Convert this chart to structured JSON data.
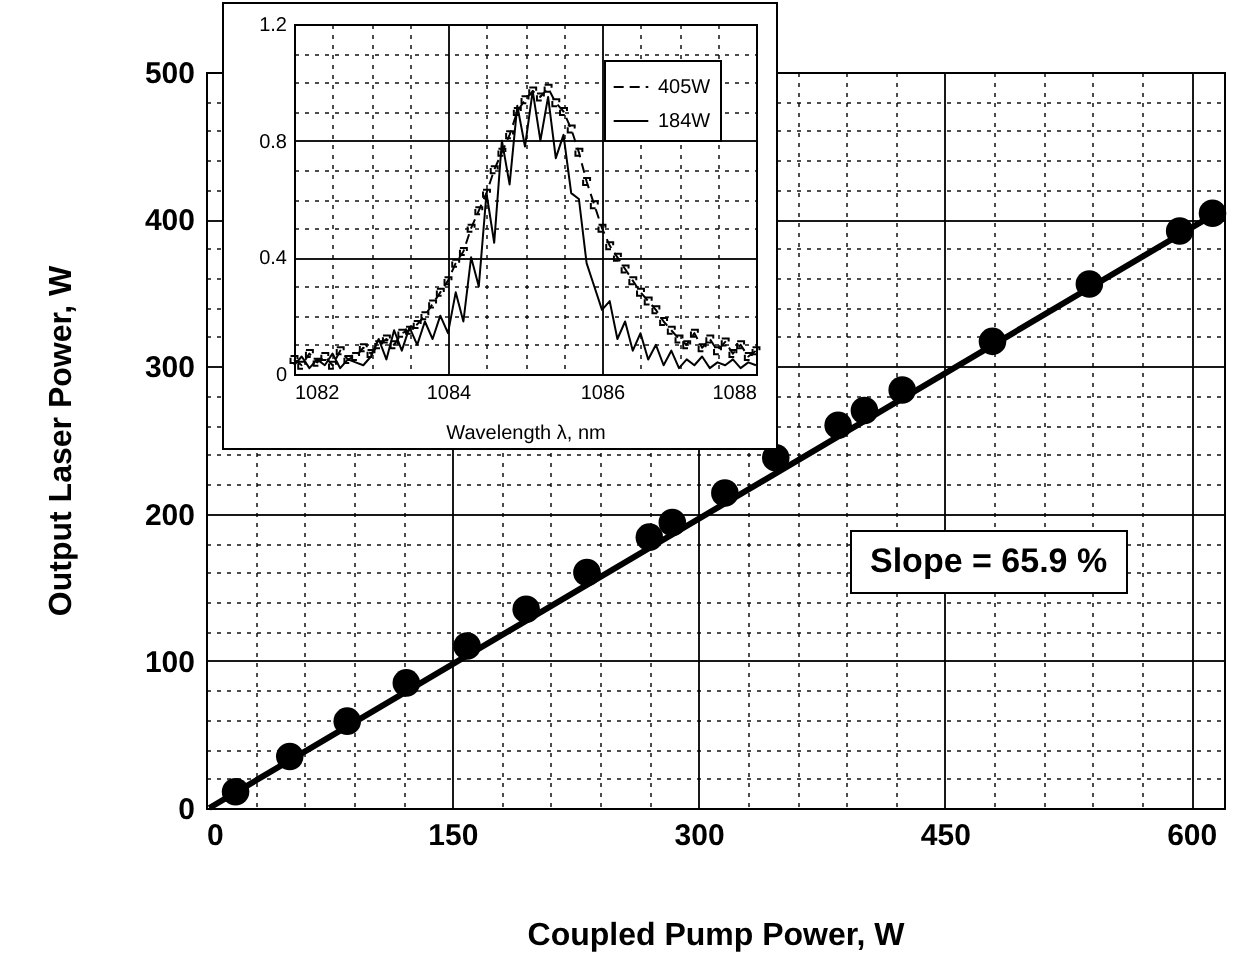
{
  "chart_data": [
    {
      "type": "scatter",
      "xlabel": "Coupled Pump Power, W",
      "ylabel": "Output Laser Power, W",
      "xlim": [
        0,
        620
      ],
      "ylim": [
        0,
        500
      ],
      "xticks": [
        0,
        {
          "value": 30,
          "label": null
        },
        {
          "value": 60,
          "label": null
        },
        {
          "value": 90,
          "label": null
        },
        {
          "value": 120,
          "label": null
        },
        150,
        {
          "value": 180,
          "label": null
        },
        {
          "value": 210,
          "label": null
        },
        {
          "value": 240,
          "label": null
        },
        {
          "value": 270,
          "label": null
        },
        300,
        {
          "value": 330,
          "label": null
        },
        {
          "value": 360,
          "label": null
        },
        {
          "value": 390,
          "label": null
        },
        {
          "value": 420,
          "label": null
        },
        450,
        {
          "value": 480,
          "label": null
        },
        {
          "value": 510,
          "label": null
        },
        {
          "value": 540,
          "label": null
        },
        {
          "value": 570,
          "label": null
        },
        600
      ],
      "yticks": [
        0,
        {
          "value": 20,
          "label": null
        },
        {
          "value": 40,
          "label": null
        },
        {
          "value": 60,
          "label": null
        },
        {
          "value": 80,
          "label": null
        },
        100,
        {
          "value": 120,
          "label": null
        },
        {
          "value": 140,
          "label": null
        },
        {
          "value": 160,
          "label": null
        },
        {
          "value": 180,
          "label": null
        },
        200,
        {
          "value": 220,
          "label": null
        },
        {
          "value": 240,
          "label": null
        },
        {
          "value": 260,
          "label": null
        },
        {
          "value": 280,
          "label": null
        },
        300,
        {
          "value": 320,
          "label": null
        },
        {
          "value": 340,
          "label": null
        },
        {
          "value": 360,
          "label": null
        },
        {
          "value": 380,
          "label": null
        },
        400,
        {
          "value": 420,
          "label": null
        },
        {
          "value": 440,
          "label": null
        },
        {
          "value": 460,
          "label": null
        },
        {
          "value": 480,
          "label": null
        },
        500
      ],
      "grid": true,
      "annotations": [
        "Slope = 65.9 %"
      ],
      "series": [
        {
          "type": "line",
          "color": "#000000",
          "marker": "none",
          "line_style": "solid",
          "x": [
            2,
            615
          ],
          "values": [
            0,
            404
          ]
        },
        {
          "color": "#000000",
          "marker": "circle",
          "x": [
            18,
            51,
            86,
            122,
            159,
            195,
            232,
            270,
            284,
            316,
            347,
            385,
            401,
            424,
            479,
            538,
            593,
            613
          ],
          "values": [
            11,
            35,
            59,
            85,
            110,
            135,
            160,
            184,
            194,
            214,
            238,
            260,
            270,
            284,
            317,
            356,
            392,
            404
          ]
        }
      ]
    },
    {
      "type": "line",
      "xlabel": "Wavelength λ, nm",
      "xlim": [
        1082,
        1088
      ],
      "ylim": [
        0,
        1.2
      ],
      "xticks": [
        1082,
        {
          "value": 1082.5,
          "label": null
        },
        {
          "value": 1083,
          "label": null
        },
        {
          "value": 1083.5,
          "label": null
        },
        1084,
        {
          "value": 1084.5,
          "label": null
        },
        {
          "value": 1085,
          "label": null
        },
        {
          "value": 1085.5,
          "label": null
        },
        1086,
        {
          "value": 1086.5,
          "label": null
        },
        {
          "value": 1087,
          "label": null
        },
        {
          "value": 1087.5,
          "label": null
        },
        1088
      ],
      "yticks": [
        0,
        {
          "value": 0.1,
          "label": null
        },
        {
          "value": 0.2,
          "label": null
        },
        {
          "value": 0.3,
          "label": null
        },
        0.4,
        {
          "value": 0.5,
          "label": null
        },
        {
          "value": 0.6,
          "label": null
        },
        {
          "value": 0.7,
          "label": null
        },
        0.8,
        {
          "value": 0.9,
          "label": null
        },
        {
          "value": 1.0,
          "label": null
        },
        {
          "value": 1.1,
          "label": null
        },
        1.2
      ],
      "grid": true,
      "legend": "top right",
      "x": [
        1082.0,
        1082.1,
        1082.2,
        1082.3,
        1082.4,
        1082.5,
        1082.6,
        1082.7,
        1082.8,
        1082.9,
        1083.0,
        1083.1,
        1083.2,
        1083.3,
        1083.4,
        1083.5,
        1083.6,
        1083.7,
        1083.8,
        1083.9,
        1084.0,
        1084.1,
        1084.2,
        1084.3,
        1084.4,
        1084.5,
        1084.6,
        1084.7,
        1084.8,
        1084.9,
        1085.0,
        1085.1,
        1085.2,
        1085.3,
        1085.4,
        1085.5,
        1085.6,
        1085.7,
        1085.8,
        1085.9,
        1086.0,
        1086.1,
        1086.2,
        1086.3,
        1086.4,
        1086.5,
        1086.6,
        1086.7,
        1086.8,
        1086.9,
        1087.0,
        1087.1,
        1087.2,
        1087.3,
        1087.4,
        1087.5,
        1087.6,
        1087.7,
        1087.8,
        1087.9,
        1088.0
      ],
      "series": [
        {
          "name": "405W",
          "color": "#000000",
          "marker": "square",
          "line_style": "dashed",
          "values": [
            0.05,
            0.03,
            0.07,
            0.04,
            0.06,
            0.03,
            0.08,
            0.05,
            0.06,
            0.09,
            0.07,
            0.1,
            0.12,
            0.1,
            0.14,
            0.15,
            0.17,
            0.2,
            0.24,
            0.28,
            0.32,
            0.38,
            0.42,
            0.5,
            0.56,
            0.62,
            0.7,
            0.76,
            0.82,
            0.9,
            0.94,
            0.97,
            0.95,
            0.98,
            0.93,
            0.9,
            0.84,
            0.76,
            0.66,
            0.58,
            0.5,
            0.44,
            0.4,
            0.36,
            0.32,
            0.28,
            0.25,
            0.22,
            0.18,
            0.15,
            0.12,
            0.1,
            0.14,
            0.09,
            0.12,
            0.08,
            0.11,
            0.07,
            0.1,
            0.06,
            0.08
          ]
        },
        {
          "name": "184W",
          "color": "#000000",
          "marker": "none",
          "line_style": "solid",
          "values": [
            0.03,
            0.06,
            0.02,
            0.05,
            0.03,
            0.07,
            0.02,
            0.05,
            0.04,
            0.03,
            0.06,
            0.12,
            0.05,
            0.15,
            0.08,
            0.16,
            0.1,
            0.18,
            0.12,
            0.2,
            0.14,
            0.28,
            0.18,
            0.4,
            0.3,
            0.62,
            0.45,
            0.8,
            0.65,
            0.92,
            0.78,
            0.97,
            0.8,
            0.95,
            0.74,
            0.82,
            0.62,
            0.6,
            0.38,
            0.3,
            0.22,
            0.25,
            0.12,
            0.18,
            0.08,
            0.14,
            0.05,
            0.1,
            0.03,
            0.08,
            0.02,
            0.05,
            0.03,
            0.06,
            0.02,
            0.04,
            0.03,
            0.05,
            0.02,
            0.04,
            0.03
          ]
        }
      ]
    }
  ]
}
